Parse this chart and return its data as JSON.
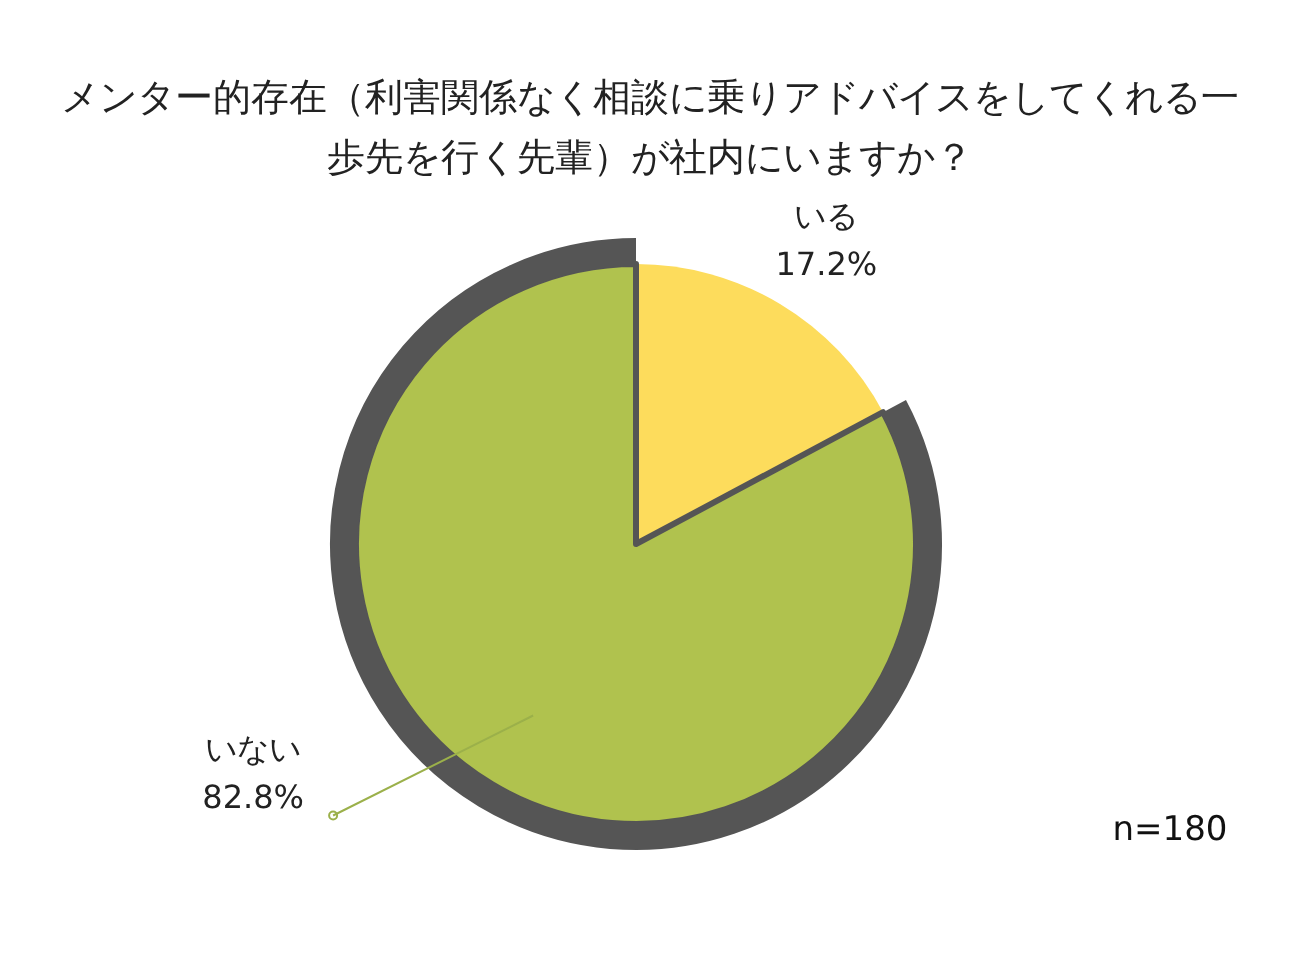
{
  "chart_data": {
    "type": "pie",
    "title": "メンター的存在（利害関係なく相談に乗りアドバイスをしてくれる一歩先を行く先輩）が社内にいますか？",
    "categories": [
      "いる",
      "いない"
    ],
    "values": [
      17.2,
      82.8
    ],
    "value_labels": [
      "17.2%",
      "82.8%"
    ],
    "colors": [
      "#fddc5c",
      "#b0c24e"
    ],
    "annotations": [
      "n=180"
    ]
  }
}
